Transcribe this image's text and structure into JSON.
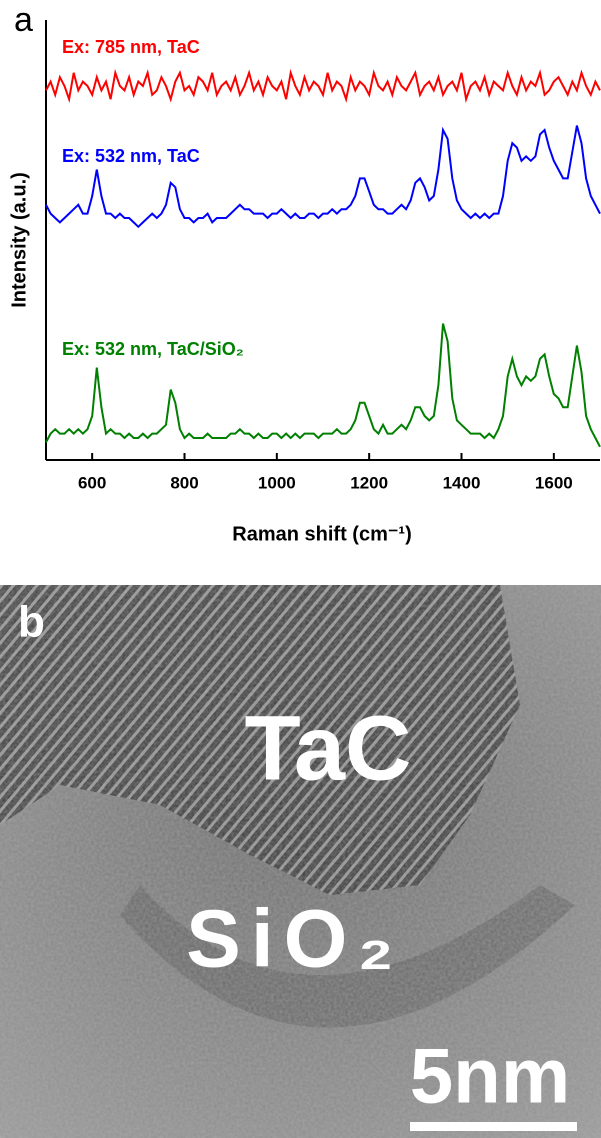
{
  "chart_data": {
    "type": "line",
    "panel_label": "a",
    "x_label": "Raman shift (cm⁻¹)",
    "y_label": "Intensity (a.u.)",
    "xlim": [
      500,
      1700
    ],
    "xticks": [
      600,
      800,
      1000,
      1200,
      1400,
      1600
    ],
    "ylim": [
      0,
      100
    ],
    "x": [
      500,
      510,
      520,
      530,
      540,
      550,
      560,
      570,
      580,
      590,
      600,
      610,
      620,
      630,
      640,
      650,
      660,
      670,
      680,
      690,
      700,
      710,
      720,
      730,
      740,
      750,
      760,
      770,
      780,
      790,
      800,
      810,
      820,
      830,
      840,
      850,
      860,
      870,
      880,
      890,
      900,
      910,
      920,
      930,
      940,
      950,
      960,
      970,
      980,
      990,
      1000,
      1010,
      1020,
      1030,
      1040,
      1050,
      1060,
      1070,
      1080,
      1090,
      1100,
      1110,
      1120,
      1130,
      1140,
      1150,
      1160,
      1170,
      1180,
      1190,
      1200,
      1210,
      1220,
      1230,
      1240,
      1250,
      1260,
      1270,
      1280,
      1290,
      1300,
      1310,
      1320,
      1330,
      1340,
      1350,
      1360,
      1370,
      1380,
      1390,
      1400,
      1410,
      1420,
      1430,
      1440,
      1450,
      1460,
      1470,
      1480,
      1490,
      1500,
      1510,
      1520,
      1530,
      1540,
      1550,
      1560,
      1570,
      1580,
      1590,
      1600,
      1610,
      1620,
      1630,
      1640,
      1650,
      1660,
      1670,
      1680,
      1690,
      1700
    ],
    "series": [
      {
        "name": "Ex: 785 nm, TaC",
        "color": "#ff0000",
        "values": [
          84,
          86,
          83,
          87,
          85,
          82,
          88,
          84,
          86,
          85,
          83,
          87,
          84,
          86,
          82,
          88,
          85,
          84,
          87,
          83,
          86,
          85,
          88,
          83,
          84,
          87,
          85,
          82,
          86,
          88,
          84,
          85,
          83,
          87,
          86,
          84,
          88,
          83,
          85,
          86,
          84,
          87,
          83,
          85,
          88,
          84,
          86,
          83,
          87,
          85,
          84,
          86,
          82,
          88,
          85,
          83,
          87,
          84,
          86,
          85,
          83,
          88,
          84,
          86,
          85,
          82,
          87,
          84,
          86,
          85,
          83,
          88,
          85,
          84,
          86,
          83,
          87,
          85,
          84,
          86,
          88,
          83,
          85,
          86,
          84,
          87,
          83,
          85,
          86,
          84,
          88,
          82,
          85,
          86,
          84,
          87,
          83,
          86,
          85,
          84,
          88,
          85,
          83,
          87,
          84,
          86,
          85,
          88,
          83,
          84,
          86,
          87,
          85,
          83,
          86,
          84,
          88,
          85,
          83,
          86,
          84
        ]
      },
      {
        "name": "Ex: 532 nm, TaC",
        "color": "#0000ff",
        "values": [
          58,
          56,
          55,
          54,
          55,
          56,
          57,
          58,
          56,
          56,
          60,
          66,
          60,
          56,
          56,
          55,
          56,
          55,
          55,
          54,
          53,
          54,
          55,
          56,
          55,
          56,
          58,
          63,
          62,
          57,
          55,
          55,
          54,
          55,
          55,
          56,
          54,
          55,
          55,
          55,
          56,
          57,
          58,
          57,
          57,
          56,
          56,
          56,
          55,
          56,
          56,
          57,
          56,
          55,
          56,
          55,
          55,
          56,
          56,
          55,
          56,
          56,
          57,
          56,
          57,
          57,
          58,
          60,
          64,
          64,
          61,
          58,
          57,
          57,
          56,
          56,
          57,
          58,
          57,
          59,
          63,
          64,
          62,
          59,
          60,
          66,
          75,
          73,
          64,
          59,
          57,
          56,
          55,
          56,
          55,
          56,
          55,
          56,
          56,
          60,
          68,
          72,
          71,
          68,
          69,
          68,
          69,
          74,
          75,
          71,
          68,
          66,
          64,
          64,
          70,
          76,
          72,
          64,
          60,
          58,
          56
        ]
      },
      {
        "name": "Ex: 532 nm, TaC/SiO₂",
        "color": "#008000",
        "values": [
          4,
          6,
          7,
          6,
          6,
          7,
          6,
          7,
          6,
          7,
          10,
          21,
          12,
          6,
          7,
          6,
          6,
          5,
          6,
          5,
          5,
          6,
          5,
          6,
          6,
          7,
          8,
          16,
          13,
          7,
          5,
          6,
          5,
          5,
          5,
          6,
          5,
          5,
          5,
          5,
          6,
          6,
          7,
          6,
          6,
          5,
          6,
          5,
          5,
          6,
          6,
          5,
          6,
          5,
          6,
          5,
          6,
          6,
          6,
          5,
          6,
          6,
          6,
          7,
          6,
          6,
          7,
          9,
          13,
          13,
          10,
          7,
          6,
          8,
          6,
          6,
          7,
          8,
          7,
          9,
          12,
          12,
          10,
          9,
          10,
          17,
          31,
          27,
          14,
          9,
          8,
          7,
          6,
          6,
          6,
          5,
          6,
          5,
          7,
          10,
          19,
          23,
          19,
          17,
          19,
          18,
          19,
          23,
          24,
          19,
          15,
          14,
          12,
          12,
          19,
          26,
          20,
          10,
          7,
          5,
          3
        ]
      }
    ]
  },
  "image": {
    "panel_label": "b",
    "labels": [
      "TaC",
      "SiO₂"
    ],
    "scale_bar": "5nm"
  }
}
